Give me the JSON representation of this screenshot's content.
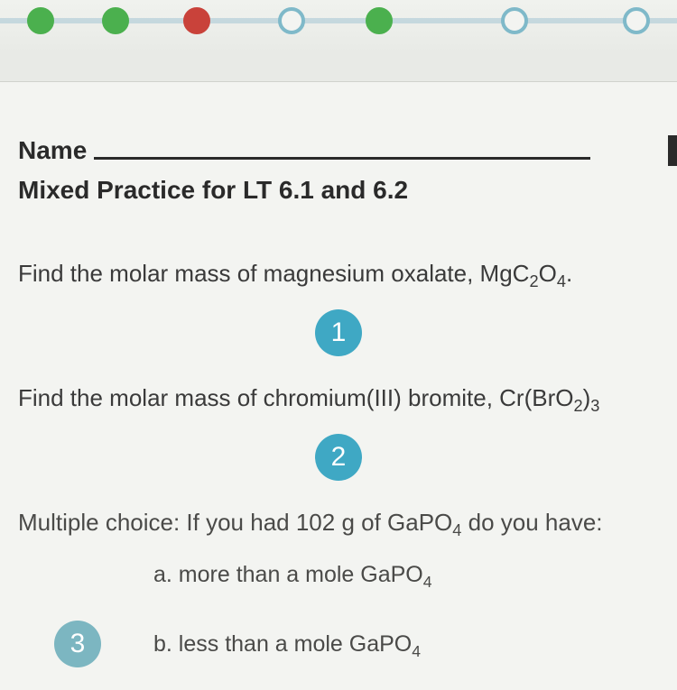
{
  "progress": {
    "track_color": "#c5d8de",
    "nodes": [
      {
        "left_pct": 4,
        "fill": "#4bb04e",
        "border": "#4bb04e",
        "type": "filled"
      },
      {
        "left_pct": 15,
        "fill": "#4bb04e",
        "border": "#4bb04e",
        "type": "filled"
      },
      {
        "left_pct": 27,
        "fill": "#c9423a",
        "border": "#c9423a",
        "type": "filled"
      },
      {
        "left_pct": 41,
        "fill": "#f3f4f1",
        "border": "#7fb9c9",
        "type": "hollow"
      },
      {
        "left_pct": 54,
        "fill": "#4bb04e",
        "border": "#4bb04e",
        "type": "filled"
      },
      {
        "left_pct": 74,
        "fill": "#f3f4f1",
        "border": "#7fb9c9",
        "type": "hollow"
      },
      {
        "left_pct": 92,
        "fill": "#f3f4f1",
        "border": "#7fb9c9",
        "type": "hollow"
      }
    ]
  },
  "worksheet": {
    "name_label": "Name",
    "subtitle": "Mixed Practice for LT 6.1 and 6.2",
    "badge_color": "#3fa8c4",
    "badge_color_faded": "#7cb6c1",
    "questions": {
      "q1": {
        "num": "1",
        "text_html": "Find the molar mass of magnesium oxalate, MgC<sub>2</sub>O<sub>4</sub>."
      },
      "q2": {
        "num": "2",
        "text_html": "Find the molar mass of chromium(III) bromite, Cr(BrO<sub>2</sub>)<sub>3</sub>"
      },
      "q3": {
        "num": "3",
        "text_html": "Multiple choice: If you had 102 g of GaPO<sub>4</sub> do you have:",
        "opt_a_html": "a. more than a mole GaPO<sub>4</sub>",
        "opt_b_html": "b. less than a mole GaPO<sub>4</sub>"
      }
    }
  },
  "colors": {
    "page_bg": "#e8eae6",
    "content_bg": "#f3f4f1",
    "text": "#2a2a2a",
    "text_soft": "#3a3a3a"
  }
}
